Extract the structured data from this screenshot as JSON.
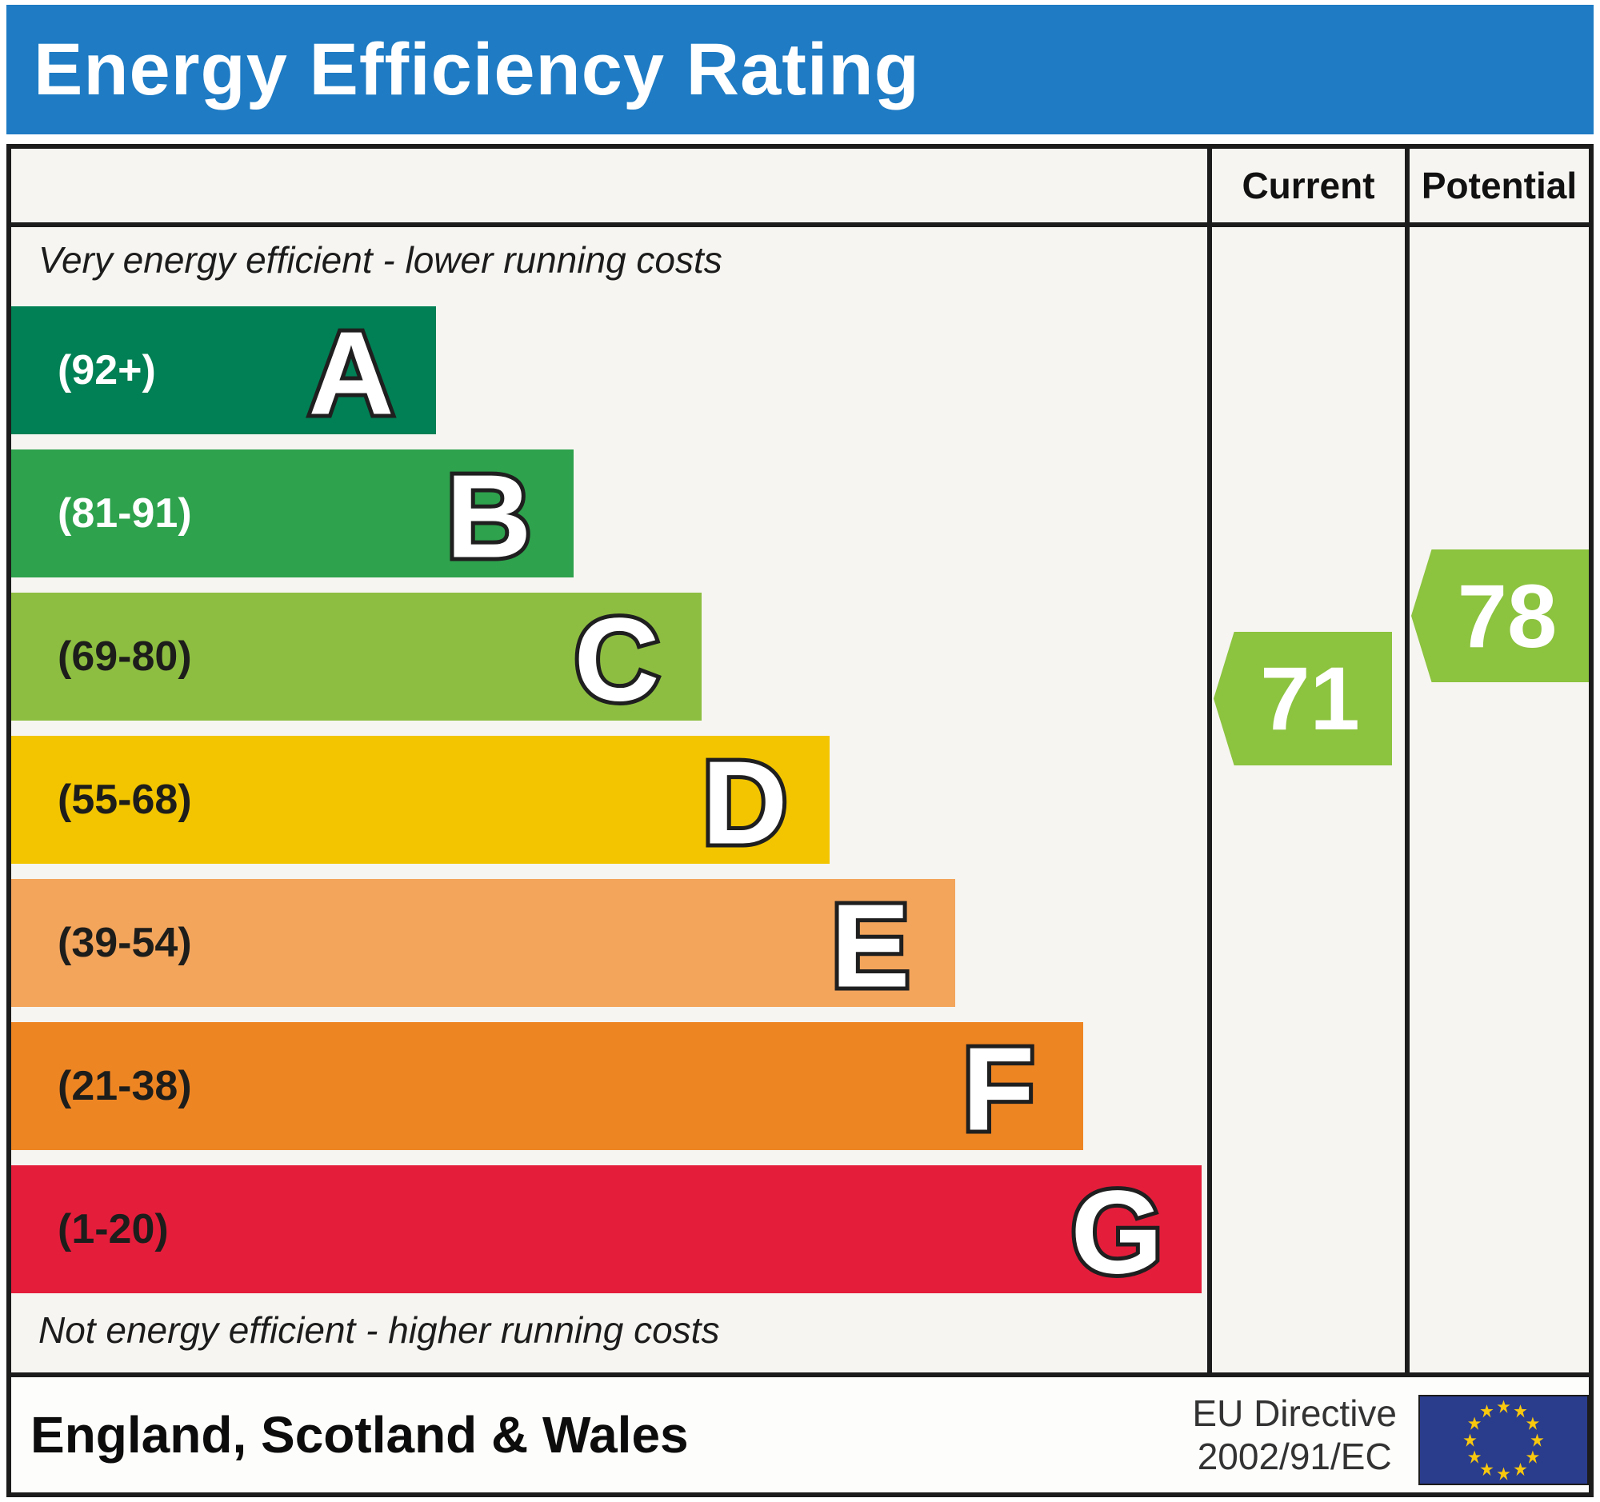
{
  "title": "Energy Efficiency Rating",
  "columns": {
    "current": "Current",
    "potential": "Potential"
  },
  "colors": {
    "title_bar": "#1e7bc4",
    "border": "#1c1c1c",
    "chart_background": "#f6f5f1"
  },
  "chart_data": {
    "type": "bar",
    "title": "Energy Efficiency Rating",
    "top_caption": "Very energy efficient - lower running costs",
    "bottom_caption": "Not energy efficient - higher running costs",
    "legend_position": "none",
    "grid": false,
    "bands": [
      {
        "letter": "A",
        "range_label": "(92+)",
        "range_min": 92,
        "range_max": 100,
        "color": "#008054",
        "label_color": "#ffffff",
        "width_pct": 35.5
      },
      {
        "letter": "B",
        "range_label": "(81-91)",
        "range_min": 81,
        "range_max": 91,
        "color": "#2ea24d",
        "label_color": "#ffffff",
        "width_pct": 47.0
      },
      {
        "letter": "C",
        "range_label": "(69-80)",
        "range_min": 69,
        "range_max": 80,
        "color": "#8dbe41",
        "label_color": "#1d1d1b",
        "width_pct": 57.7
      },
      {
        "letter": "D",
        "range_label": "(55-68)",
        "range_min": 55,
        "range_max": 68,
        "color": "#f2c500",
        "label_color": "#1d1d1b",
        "width_pct": 68.4
      },
      {
        "letter": "E",
        "range_label": "(39-54)",
        "range_min": 39,
        "range_max": 54,
        "color": "#f3a55c",
        "label_color": "#1d1d1b",
        "width_pct": 78.9
      },
      {
        "letter": "F",
        "range_label": "(21-38)",
        "range_min": 21,
        "range_max": 38,
        "color": "#ee8523",
        "label_color": "#1d1d1b",
        "width_pct": 89.6
      },
      {
        "letter": "G",
        "range_label": "(1-20)",
        "range_min": 1,
        "range_max": 20,
        "color": "#e41d3b",
        "label_color": "#1d1d1b",
        "width_pct": 99.5
      }
    ],
    "current": {
      "value": 71,
      "band": "C",
      "color": "#8cc33f"
    },
    "potential": {
      "value": 78,
      "band": "C",
      "color": "#8cc33f"
    }
  },
  "footer": {
    "region": "England, Scotland & Wales",
    "directive_line1": "EU Directive",
    "directive_line2": "2002/91/EC",
    "eu_flag": {
      "background": "#2a3c8c",
      "star_color": "#f8c80e"
    }
  }
}
